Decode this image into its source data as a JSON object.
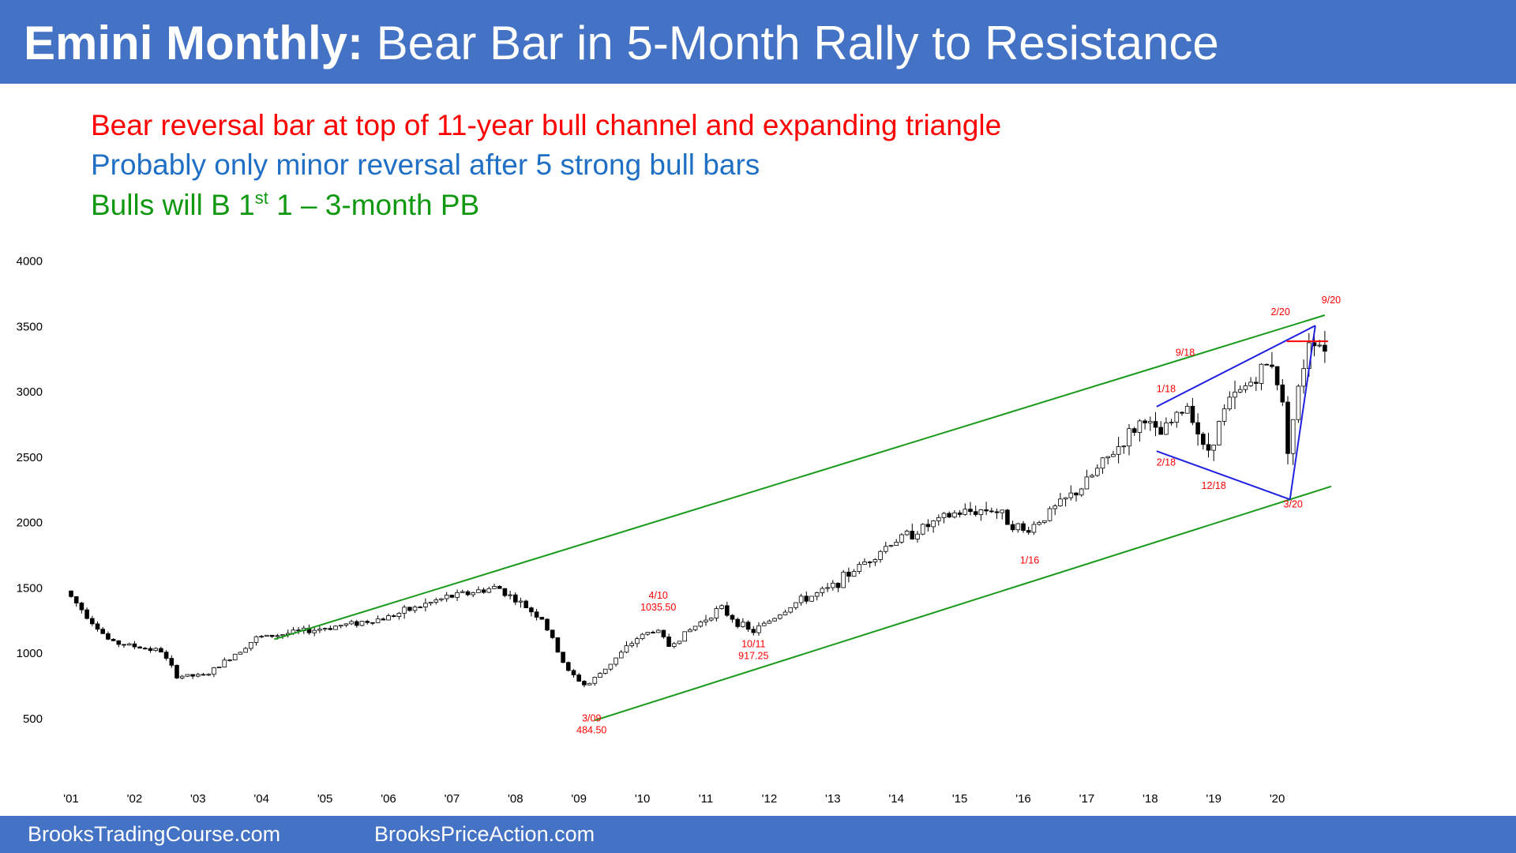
{
  "header": {
    "title_bold": "Emini Monthly:",
    "title_rest": "Bear Bar in 5-Month Rally to Resistance"
  },
  "notes": {
    "line1": "Bear reversal bar at top of 11-year bull channel and expanding triangle",
    "line2": "Probably only minor reversal after 5 strong bull bars",
    "line3_prefix": "Bulls will B 1",
    "line3_sup": "st",
    "line3_suffix": " 1 – 3-month PB"
  },
  "footer": {
    "left": "BrooksTradingCourse.com",
    "right": "BrooksPriceAction.com"
  },
  "colors": {
    "title_bar": "#4472c4",
    "bear_note": "#ff0000",
    "probably_note": "#1f6fc5",
    "bulls_note": "#109810",
    "channel_line": "#1a9a1a",
    "triangle_line": "#2020e0",
    "resistance_line": "#ff0000",
    "annotation": "#ff0000",
    "candle": "#000000"
  },
  "chart_data": {
    "type": "candlestick",
    "title": "",
    "xlabel": "",
    "ylabel": "",
    "ylim": [
      0,
      4000
    ],
    "yticks": [
      500,
      1000,
      1500,
      2000,
      2500,
      3000,
      3500,
      4000
    ],
    "xlim": [
      2001.0,
      2020.85
    ],
    "xticks": [
      {
        "year": 2001,
        "label": "'01"
      },
      {
        "year": 2002,
        "label": "'02"
      },
      {
        "year": 2003,
        "label": "'03"
      },
      {
        "year": 2004,
        "label": "'04"
      },
      {
        "year": 2005,
        "label": "'05"
      },
      {
        "year": 2006,
        "label": "'06"
      },
      {
        "year": 2007,
        "label": "'07"
      },
      {
        "year": 2008,
        "label": "'08"
      },
      {
        "year": 2009,
        "label": "'09"
      },
      {
        "year": 2010,
        "label": "'10"
      },
      {
        "year": 2011,
        "label": "'11"
      },
      {
        "year": 2012,
        "label": "'12"
      },
      {
        "year": 2013,
        "label": "'13"
      },
      {
        "year": 2014,
        "label": "'14"
      },
      {
        "year": 2015,
        "label": "'15"
      },
      {
        "year": 2016,
        "label": "'16"
      },
      {
        "year": 2017,
        "label": "'17"
      },
      {
        "year": 2018,
        "label": "'18"
      },
      {
        "year": 2019,
        "label": "'19"
      },
      {
        "year": 2020,
        "label": "'20"
      }
    ],
    "grid": false,
    "key_points": [
      {
        "t": 2001.0,
        "v": 1470
      },
      {
        "t": 2001.7,
        "v": 1080
      },
      {
        "t": 2002.5,
        "v": 1010
      },
      {
        "t": 2002.75,
        "v": 820
      },
      {
        "t": 2003.2,
        "v": 820
      },
      {
        "t": 2004.0,
        "v": 1110
      },
      {
        "t": 2005.0,
        "v": 1180
      },
      {
        "t": 2006.0,
        "v": 1260
      },
      {
        "t": 2007.0,
        "v": 1420
      },
      {
        "t": 2007.8,
        "v": 1500
      },
      {
        "t": 2008.5,
        "v": 1260
      },
      {
        "t": 2008.9,
        "v": 860
      },
      {
        "t": 2009.2,
        "v": 740
      },
      {
        "t": 2010.0,
        "v": 1110
      },
      {
        "t": 2010.3,
        "v": 1180
      },
      {
        "t": 2010.5,
        "v": 1050
      },
      {
        "t": 2011.3,
        "v": 1340
      },
      {
        "t": 2011.8,
        "v": 1150
      },
      {
        "t": 2012.5,
        "v": 1380
      },
      {
        "t": 2013.0,
        "v": 1480
      },
      {
        "t": 2014.0,
        "v": 1840
      },
      {
        "t": 2015.0,
        "v": 2060
      },
      {
        "t": 2015.6,
        "v": 2100
      },
      {
        "t": 2016.1,
        "v": 1920
      },
      {
        "t": 2017.0,
        "v": 2260
      },
      {
        "t": 2018.0,
        "v": 2800
      },
      {
        "t": 2018.2,
        "v": 2640
      },
      {
        "t": 2018.7,
        "v": 2910
      },
      {
        "t": 2018.95,
        "v": 2500
      },
      {
        "t": 2019.3,
        "v": 2900
      },
      {
        "t": 2020.0,
        "v": 3230
      },
      {
        "t": 2020.15,
        "v": 2950
      },
      {
        "t": 2020.25,
        "v": 2580
      },
      {
        "t": 2020.6,
        "v": 3450
      },
      {
        "t": 2020.75,
        "v": 3360
      }
    ],
    "channel_lines": [
      {
        "name": "",
        "x1": 2004.2,
        "y1": 1100,
        "x2": 2020.75,
        "y2": 3580
      },
      {
        "name": "",
        "x1": 2009.25,
        "y1": 480,
        "x2": 2020.85,
        "y2": 2270
      }
    ],
    "triangle_lines": [
      {
        "x1": 2018.1,
        "y1": 2880,
        "x2": 2020.6,
        "y2": 3500
      },
      {
        "x1": 2018.1,
        "y1": 2540,
        "x2": 2020.2,
        "y2": 2170
      },
      {
        "x1": 2020.2,
        "y1": 2170,
        "x2": 2020.6,
        "y2": 3500
      }
    ],
    "resistance_line": {
      "x1": 2020.15,
      "y1": 3380,
      "x2": 2020.8,
      "y2": 3380
    },
    "annotations": [
      {
        "text": "3/09",
        "x": 2009.2,
        "y": 470
      },
      {
        "text": "484.50",
        "x": 2009.2,
        "y": 380
      },
      {
        "text": "4/10",
        "x": 2010.25,
        "y": 1410
      },
      {
        "text": "1035.50",
        "x": 2010.25,
        "y": 1320
      },
      {
        "text": "10/11",
        "x": 2011.75,
        "y": 1040
      },
      {
        "text": "917.25",
        "x": 2011.75,
        "y": 950
      },
      {
        "text": "1/16",
        "x": 2016.1,
        "y": 1680
      },
      {
        "text": "1/18",
        "x": 2018.25,
        "y": 2990
      },
      {
        "text": "9/18",
        "x": 2018.55,
        "y": 3270
      },
      {
        "text": "2/18",
        "x": 2018.25,
        "y": 2430
      },
      {
        "text": "12/18",
        "x": 2019.0,
        "y": 2250
      },
      {
        "text": "3/20",
        "x": 2020.25,
        "y": 2110
      },
      {
        "text": "2/20",
        "x": 2020.05,
        "y": 3580
      },
      {
        "text": "9/20",
        "x": 2020.85,
        "y": 3670
      }
    ]
  }
}
